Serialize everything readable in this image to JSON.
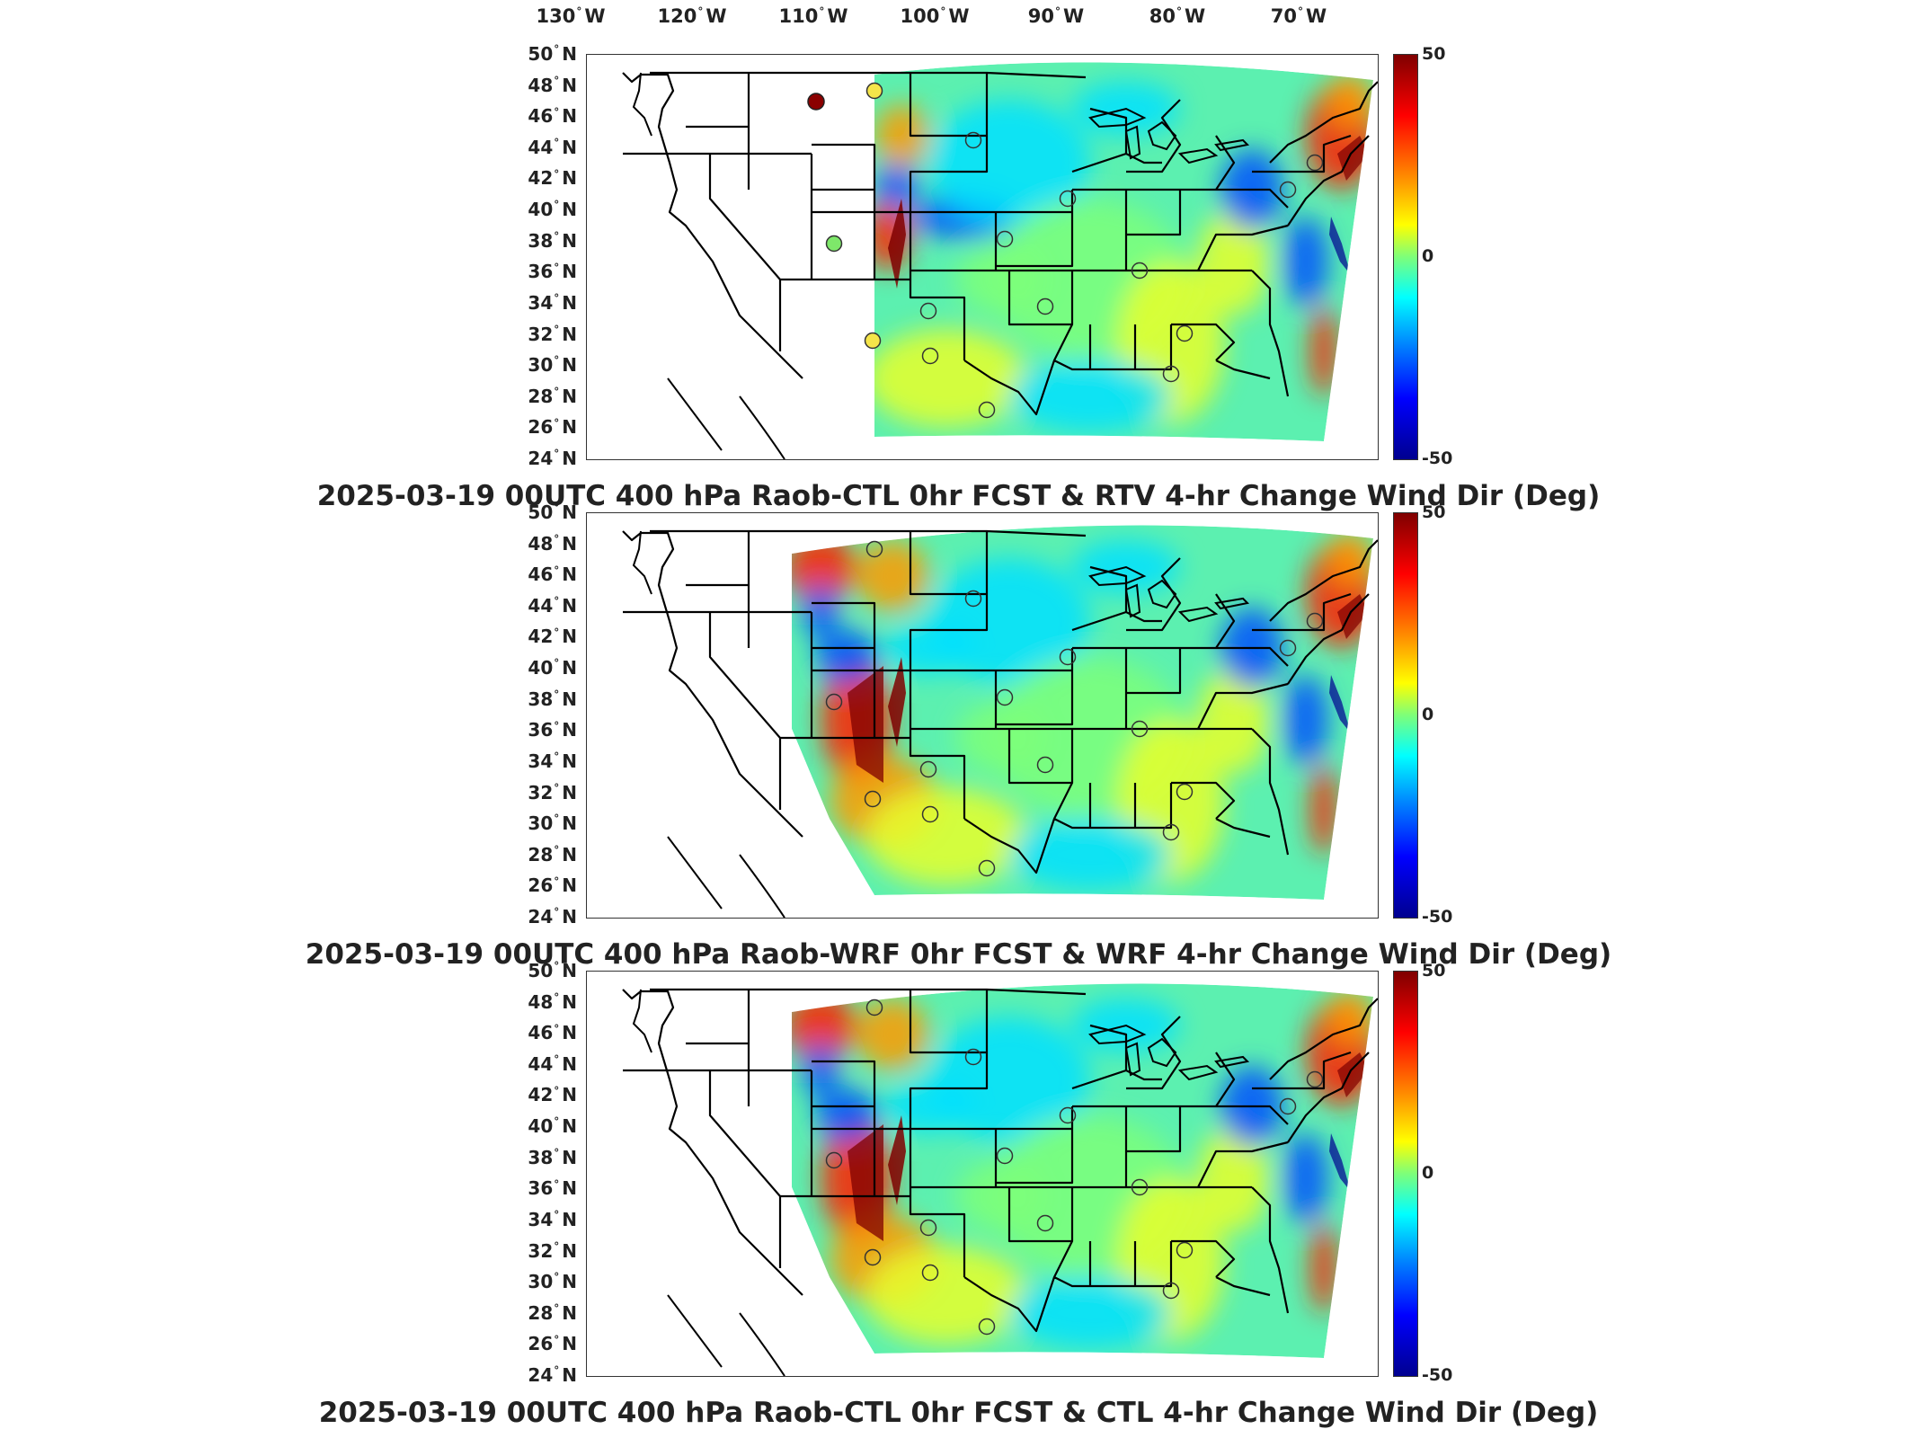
{
  "longitude_labels": [
    {
      "value": "130",
      "dir": "W"
    },
    {
      "value": "120",
      "dir": "W"
    },
    {
      "value": "110",
      "dir": "W"
    },
    {
      "value": "100",
      "dir": "W"
    },
    {
      "value": "90",
      "dir": "W"
    },
    {
      "value": "80",
      "dir": "W"
    },
    {
      "value": "70",
      "dir": "W"
    }
  ],
  "latitude_labels": [
    {
      "value": "50",
      "dir": "N"
    },
    {
      "value": "48",
      "dir": "N"
    },
    {
      "value": "46",
      "dir": "N"
    },
    {
      "value": "44",
      "dir": "N"
    },
    {
      "value": "42",
      "dir": "N"
    },
    {
      "value": "40",
      "dir": "N"
    },
    {
      "value": "38",
      "dir": "N"
    },
    {
      "value": "36",
      "dir": "N"
    },
    {
      "value": "34",
      "dir": "N"
    },
    {
      "value": "32",
      "dir": "N"
    },
    {
      "value": "30",
      "dir": "N"
    },
    {
      "value": "28",
      "dir": "N"
    },
    {
      "value": "26",
      "dir": "N"
    },
    {
      "value": "24",
      "dir": "N"
    }
  ],
  "colorbar": {
    "max": "50",
    "mid": "0",
    "min": "-50"
  },
  "panels": [
    {
      "title": "2025-03-19 00UTC 400 hPa Raob-CTL 0hr FCST & RTV 4-hr Change Wind Dir (Deg)",
      "west_coverage": "narrow"
    },
    {
      "title": "2025-03-19 00UTC 400 hPa Raob-WRF 0hr FCST & WRF 4-hr Change Wind Dir (Deg)",
      "west_coverage": "wide"
    },
    {
      "title": "2025-03-19 00UTC 400 hPa Raob-CTL 0hr FCST & CTL 4-hr Change Wind Dir (Deg)",
      "west_coverage": "wide"
    }
  ],
  "colors": {
    "dark_red": "#7f0000",
    "red": "#ff2000",
    "orange": "#ff9a00",
    "yellow": "#e8ff2a",
    "green": "#7dff7a",
    "cyan": "#00e0ff",
    "blue": "#0050ff",
    "dark_blue": "#00008f"
  }
}
